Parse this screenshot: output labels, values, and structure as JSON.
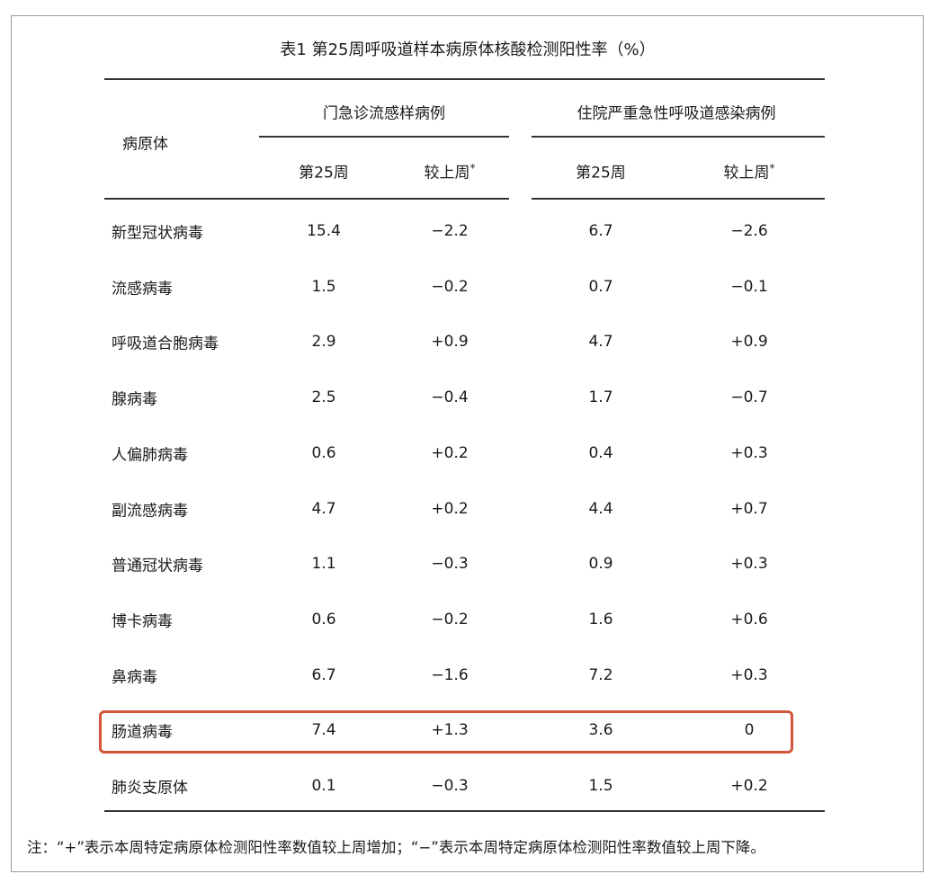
{
  "title": "表1 第25周呼吸道样本病原体核酸检测阳性率（%）",
  "header": {
    "pathogen": "病原体",
    "group1": "门急诊流感样病例",
    "group2": "住院严重急性呼吸道感染病例",
    "week": "第25周",
    "change": "较上周",
    "change_mark": "*"
  },
  "rows": [
    {
      "name": "新型冠状病毒",
      "op_week": "15.4",
      "op_change": "−2.2",
      "ip_week": "6.7",
      "ip_change": "−2.6"
    },
    {
      "name": "流感病毒",
      "op_week": "1.5",
      "op_change": "−0.2",
      "ip_week": "0.7",
      "ip_change": "−0.1"
    },
    {
      "name": "呼吸道合胞病毒",
      "op_week": "2.9",
      "op_change": "+0.9",
      "ip_week": "4.7",
      "ip_change": "+0.9"
    },
    {
      "name": "腺病毒",
      "op_week": "2.5",
      "op_change": "−0.4",
      "ip_week": "1.7",
      "ip_change": "−0.7"
    },
    {
      "name": "人偏肺病毒",
      "op_week": "0.6",
      "op_change": "+0.2",
      "ip_week": "0.4",
      "ip_change": "+0.3"
    },
    {
      "name": "副流感病毒",
      "op_week": "4.7",
      "op_change": "+0.2",
      "ip_week": "4.4",
      "ip_change": "+0.7"
    },
    {
      "name": "普通冠状病毒",
      "op_week": "1.1",
      "op_change": "−0.3",
      "ip_week": "0.9",
      "ip_change": "+0.3"
    },
    {
      "name": "博卡病毒",
      "op_week": "0.6",
      "op_change": "−0.2",
      "ip_week": "1.6",
      "ip_change": "+0.6"
    },
    {
      "name": "鼻病毒",
      "op_week": "6.7",
      "op_change": "−1.6",
      "ip_week": "7.2",
      "ip_change": "+0.3"
    },
    {
      "name": "肠道病毒",
      "op_week": "7.4",
      "op_change": "+1.3",
      "ip_week": "3.6",
      "ip_change": "0"
    },
    {
      "name": "肺炎支原体",
      "op_week": "0.1",
      "op_change": "−0.3",
      "ip_week": "1.5",
      "ip_change": "+0.2"
    }
  ],
  "highlighted_row": "肠道病毒",
  "highlight_color": "#d2553b",
  "note": "注：“+”表示本周特定病原体检测阳性率数值较上周增加；“−”表示本周特定病原体检测阳性率数值较上周下降。"
}
